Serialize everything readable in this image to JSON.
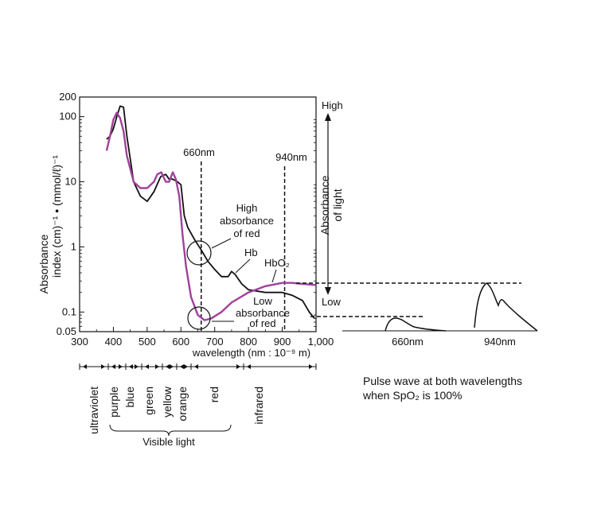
{
  "chart_data": {
    "type": "line",
    "title": "",
    "xlabel": "wavelength (nm : 10⁻⁹ m)",
    "ylabel_line1": "Absorbance",
    "ylabel_line2": "index  (cm)⁻¹ • (mmol/ℓ)⁻¹",
    "xlim": [
      300,
      1000
    ],
    "ylim": [
      0.05,
      200
    ],
    "y_scale": "log",
    "x_ticks": [
      "300",
      "400",
      "500",
      "600",
      "700",
      "800",
      "900",
      "1,000"
    ],
    "y_ticks": [
      {
        "value": 200,
        "label": "200"
      },
      {
        "value": 100,
        "label": "100"
      },
      {
        "value": 10,
        "label": "10"
      },
      {
        "value": 1,
        "label": "1"
      },
      {
        "value": 0.1,
        "label": "0.1"
      },
      {
        "value": 0.05,
        "label": "0.05"
      }
    ],
    "grid": false,
    "series": [
      {
        "name": "Hb",
        "color": "#111111",
        "points": [
          [
            380,
            45
          ],
          [
            390,
            50
          ],
          [
            400,
            65
          ],
          [
            410,
            100
          ],
          [
            420,
            145
          ],
          [
            430,
            140
          ],
          [
            440,
            50
          ],
          [
            460,
            10
          ],
          [
            480,
            6
          ],
          [
            500,
            5
          ],
          [
            520,
            7
          ],
          [
            540,
            12
          ],
          [
            555,
            13
          ],
          [
            565,
            11
          ],
          [
            575,
            11
          ],
          [
            590,
            10
          ],
          [
            600,
            9
          ],
          [
            610,
            3
          ],
          [
            620,
            2
          ],
          [
            640,
            1.3
          ],
          [
            660,
            0.9
          ],
          [
            680,
            0.6
          ],
          [
            700,
            0.45
          ],
          [
            720,
            0.35
          ],
          [
            740,
            0.35
          ],
          [
            750,
            0.42
          ],
          [
            760,
            0.38
          ],
          [
            780,
            0.27
          ],
          [
            800,
            0.22
          ],
          [
            850,
            0.2
          ],
          [
            900,
            0.2
          ],
          [
            930,
            0.18
          ],
          [
            960,
            0.15
          ],
          [
            980,
            0.1
          ],
          [
            995,
            0.08
          ]
        ]
      },
      {
        "name": "HbO₂",
        "color": "#a0419a",
        "points": [
          [
            380,
            30
          ],
          [
            390,
            50
          ],
          [
            400,
            90
          ],
          [
            410,
            115
          ],
          [
            420,
            95
          ],
          [
            430,
            60
          ],
          [
            440,
            25
          ],
          [
            460,
            10
          ],
          [
            480,
            8
          ],
          [
            500,
            8
          ],
          [
            520,
            10
          ],
          [
            530,
            13
          ],
          [
            542,
            14
          ],
          [
            555,
            10
          ],
          [
            565,
            10
          ],
          [
            576,
            14
          ],
          [
            585,
            11
          ],
          [
            595,
            6
          ],
          [
            605,
            1.5
          ],
          [
            615,
            0.5
          ],
          [
            630,
            0.17
          ],
          [
            650,
            0.09
          ],
          [
            670,
            0.075
          ],
          [
            690,
            0.08
          ],
          [
            720,
            0.1
          ],
          [
            750,
            0.14
          ],
          [
            800,
            0.2
          ],
          [
            850,
            0.25
          ],
          [
            900,
            0.28
          ],
          [
            930,
            0.28
          ],
          [
            960,
            0.27
          ],
          [
            1000,
            0.26
          ]
        ]
      }
    ],
    "reference_lines": [
      {
        "x": 660,
        "label": "660nm"
      },
      {
        "x": 940,
        "label": "940nm"
      }
    ],
    "annotations": {
      "high_absorbance": [
        "High",
        "absorbance",
        "of red"
      ],
      "low_absorbance": [
        "Low",
        "absorbance",
        "of red"
      ],
      "hb_label": "Hb",
      "hbo2_label": "HbO₂"
    },
    "right_axis": {
      "label_line1": "Absorbance",
      "label_line2": "of light",
      "high": "High",
      "low": "Low"
    },
    "spectrum_bands": {
      "bands": [
        {
          "name": "ultraviolet",
          "from": 300,
          "to": 380
        },
        {
          "name": "purple",
          "from": 380,
          "to": 430
        },
        {
          "name": "blue",
          "from": 430,
          "to": 480
        },
        {
          "name": "green",
          "from": 480,
          "to": 540
        },
        {
          "name": "yellow",
          "from": 540,
          "to": 590
        },
        {
          "name": "orange",
          "from": 590,
          "to": 640
        },
        {
          "name": "red",
          "from": 640,
          "to": 770
        },
        {
          "name": "infrared",
          "from": 770,
          "to": 1000
        }
      ],
      "visible_label": "Visible light"
    },
    "pulse_panel": {
      "waves": [
        {
          "label": "660nm",
          "level": "low"
        },
        {
          "label": "940nm",
          "level": "high"
        }
      ],
      "caption_line1": "Pulse wave at both wavelengths",
      "caption_line2": "when SpO₂ is 100%"
    }
  }
}
